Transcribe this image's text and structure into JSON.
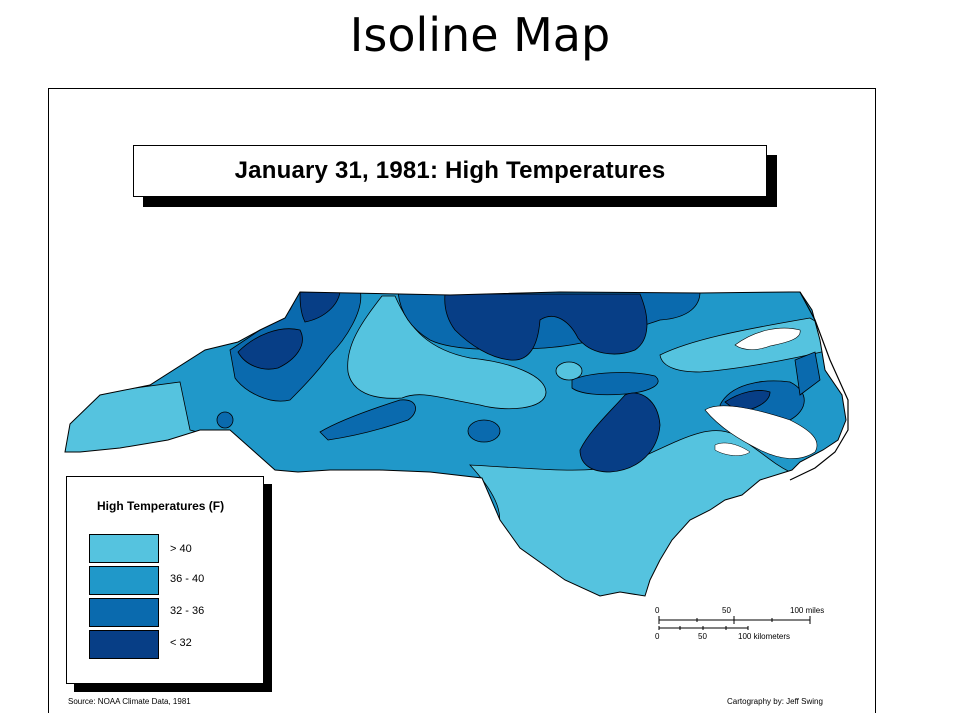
{
  "slide_title": "Isoline Map",
  "map": {
    "title": "January 31, 1981:  High Temperatures",
    "legend": {
      "title": "High Temperatures (F)",
      "classes": [
        {
          "label": "> 40",
          "color": "#55c3df"
        },
        {
          "label": "36 - 40",
          "color": "#2098c9"
        },
        {
          "label": "32 - 36",
          "color": "#0a6aae"
        },
        {
          "label": "< 32",
          "color": "#073e86"
        }
      ]
    },
    "scale_bar": {
      "miles_labels": [
        "0",
        "50",
        "100 miles"
      ],
      "km_labels": [
        "0",
        "50",
        "100 kilometers"
      ]
    },
    "source": "Source:  NOAA Climate Data, 1981",
    "credit": "Cartography by:  Jeff Swing"
  }
}
